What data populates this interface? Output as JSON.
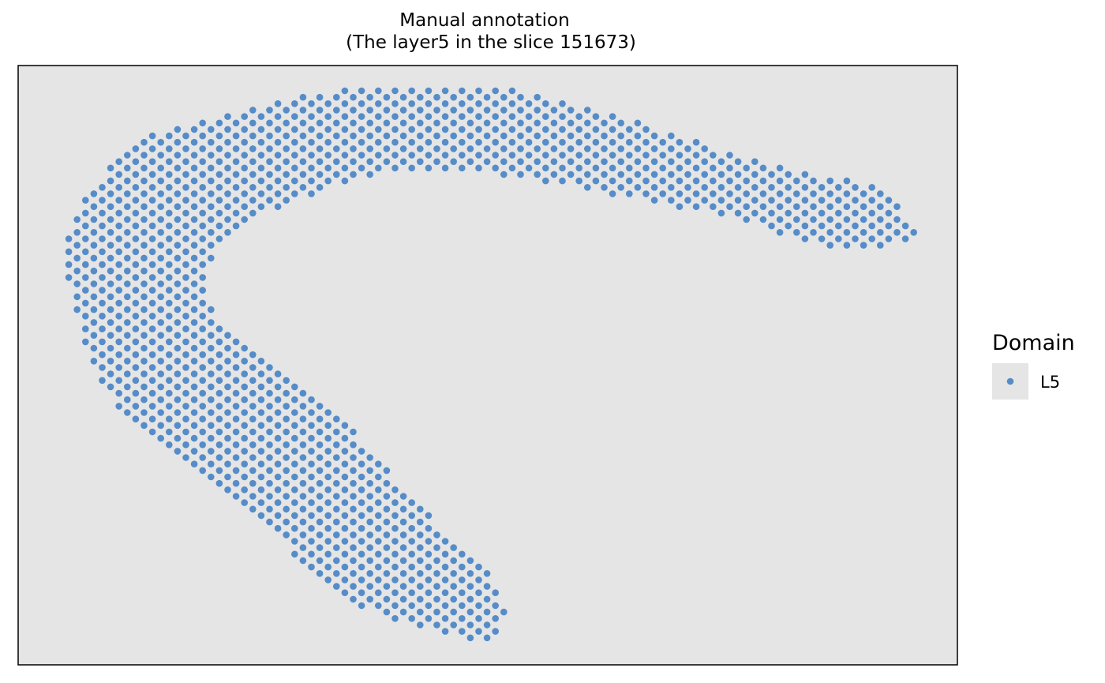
{
  "chart_data": {
    "type": "scatter",
    "title": "Manual annotation",
    "subtitle": "(The layer5 in the slice 151673)",
    "xlabel": "",
    "ylabel": "",
    "grid": false,
    "axes_visible": false,
    "legend_placement": "right",
    "legend": {
      "title": "Domain",
      "entries": [
        "L5"
      ]
    },
    "colors": {
      "panel_background": "#e5e5e5",
      "point": "#568cc8",
      "frame": "#000000"
    },
    "xlim": [
      0,
      100
    ],
    "ylim": [
      0,
      100
    ],
    "series": [
      {
        "name": "L5",
        "outline": [
          [
            8,
            80
          ],
          [
            9.5,
            82.5
          ],
          [
            12,
            86.5
          ],
          [
            15,
            89
          ],
          [
            20,
            91
          ],
          [
            25,
            93
          ],
          [
            31,
            95
          ],
          [
            37,
            96.5
          ],
          [
            43,
            96.8
          ],
          [
            50,
            96.5
          ],
          [
            56,
            95
          ],
          [
            62,
            92.5
          ],
          [
            68,
            89.5
          ],
          [
            74,
            86.5
          ],
          [
            80,
            83.5
          ],
          [
            86,
            81.5
          ],
          [
            92,
            80
          ],
          [
            96,
            72
          ],
          [
            92,
            69.5
          ],
          [
            86,
            70
          ],
          [
            80,
            72.5
          ],
          [
            74,
            75.5
          ],
          [
            68,
            77
          ],
          [
            62,
            79
          ],
          [
            56,
            80.5
          ],
          [
            50,
            82
          ],
          [
            44,
            82.5
          ],
          [
            38,
            82
          ],
          [
            33,
            79.5
          ],
          [
            28,
            76.5
          ],
          [
            24,
            73.5
          ],
          [
            21.2,
            70
          ],
          [
            20.3,
            65
          ],
          [
            20.5,
            59.5
          ],
          [
            23,
            55.5
          ],
          [
            27,
            50
          ],
          [
            31,
            45
          ],
          [
            35,
            40
          ],
          [
            38,
            35
          ],
          [
            42,
            28
          ],
          [
            46,
            21
          ],
          [
            50.5,
            14.5
          ],
          [
            52,
            10
          ],
          [
            51,
            4.5
          ],
          [
            48,
            4.5
          ],
          [
            44,
            6
          ],
          [
            39,
            7.5
          ],
          [
            35,
            11
          ],
          [
            31,
            16
          ],
          [
            27,
            22
          ],
          [
            24,
            27
          ],
          [
            19,
            32
          ],
          [
            14,
            38
          ],
          [
            10,
            44
          ],
          [
            7.5,
            50
          ],
          [
            6.5,
            56
          ],
          [
            5.5,
            62
          ],
          [
            5,
            68
          ],
          [
            5.8,
            75
          ]
        ]
      }
    ]
  }
}
